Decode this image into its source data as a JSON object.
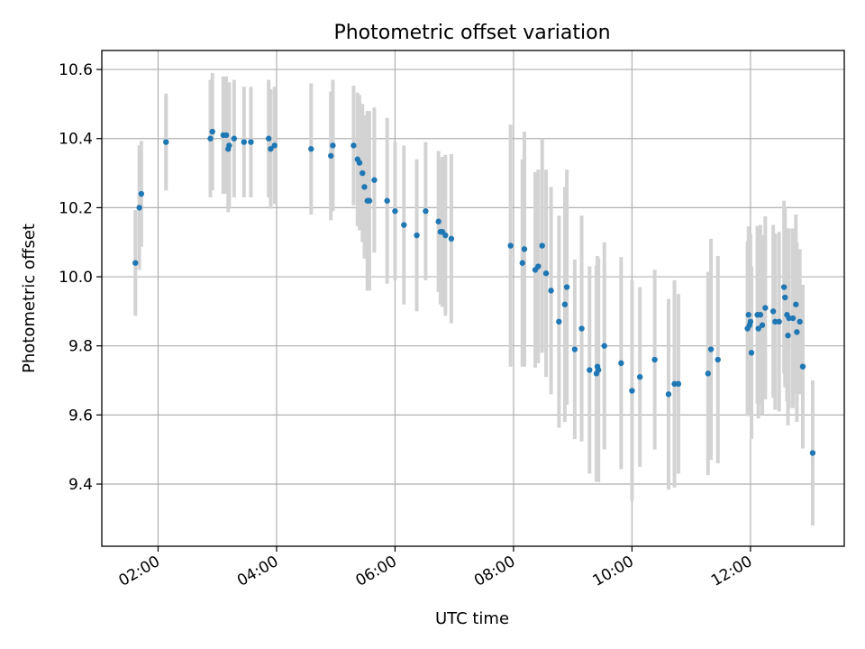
{
  "chart_data": {
    "type": "scatter",
    "title": "Photometric offset variation",
    "xlabel": "UTC time",
    "ylabel": "Photometric offset",
    "xlim": [
      "01:03",
      "13:35"
    ],
    "ylim": [
      9.22,
      10.655
    ],
    "grid": true,
    "x_ticks": [
      "02:00",
      "04:00",
      "06:00",
      "08:00",
      "10:00",
      "12:00"
    ],
    "y_ticks": [
      9.4,
      9.6,
      9.8,
      10.0,
      10.2,
      10.4,
      10.6
    ],
    "y_tick_labels": [
      "9.4",
      "9.6",
      "9.8",
      "10.0",
      "10.2",
      "10.4",
      "10.6"
    ],
    "series": [
      {
        "marker_color": "#1f77b4",
        "errorbar_color": "#d3d3d3",
        "points": [
          {
            "x": "01:37",
            "y": 10.04,
            "err": 0.153
          },
          {
            "x": "01:41",
            "y": 10.2,
            "err": 0.18
          },
          {
            "x": "01:43",
            "y": 10.24,
            "err": 0.153
          },
          {
            "x": "02:08",
            "y": 10.39,
            "err": 0.14
          },
          {
            "x": "02:53",
            "y": 10.4,
            "err": 0.17
          },
          {
            "x": "02:55",
            "y": 10.42,
            "err": 0.17
          },
          {
            "x": "03:06",
            "y": 10.41,
            "err": 0.17
          },
          {
            "x": "03:09",
            "y": 10.41,
            "err": 0.17
          },
          {
            "x": "03:11",
            "y": 10.37,
            "err": 0.183
          },
          {
            "x": "03:12",
            "y": 10.38,
            "err": 0.183
          },
          {
            "x": "03:17",
            "y": 10.4,
            "err": 0.17
          },
          {
            "x": "03:27",
            "y": 10.39,
            "err": 0.16
          },
          {
            "x": "03:34",
            "y": 10.39,
            "err": 0.16
          },
          {
            "x": "03:52",
            "y": 10.4,
            "err": 0.17
          },
          {
            "x": "03:54",
            "y": 10.37,
            "err": 0.173
          },
          {
            "x": "03:58",
            "y": 10.38,
            "err": 0.17
          },
          {
            "x": "04:35",
            "y": 10.37,
            "err": 0.19
          },
          {
            "x": "04:55",
            "y": 10.35,
            "err": 0.186
          },
          {
            "x": "04:57",
            "y": 10.38,
            "err": 0.19
          },
          {
            "x": "05:18",
            "y": 10.38,
            "err": 0.173
          },
          {
            "x": "05:22",
            "y": 10.34,
            "err": 0.193
          },
          {
            "x": "05:24",
            "y": 10.33,
            "err": 0.196
          },
          {
            "x": "05:27",
            "y": 10.3,
            "err": 0.2
          },
          {
            "x": "05:29",
            "y": 10.26,
            "err": 0.207
          },
          {
            "x": "05:32",
            "y": 10.22,
            "err": 0.26
          },
          {
            "x": "05:34",
            "y": 10.22,
            "err": 0.26
          },
          {
            "x": "05:39",
            "y": 10.28,
            "err": 0.21
          },
          {
            "x": "05:52",
            "y": 10.22,
            "err": 0.24
          },
          {
            "x": "06:00",
            "y": 10.19,
            "err": 0.2
          },
          {
            "x": "06:09",
            "y": 10.15,
            "err": 0.23
          },
          {
            "x": "06:22",
            "y": 10.12,
            "err": 0.22
          },
          {
            "x": "06:31",
            "y": 10.19,
            "err": 0.2
          },
          {
            "x": "06:44",
            "y": 10.16,
            "err": 0.204
          },
          {
            "x": "06:46",
            "y": 10.13,
            "err": 0.21
          },
          {
            "x": "06:48",
            "y": 10.13,
            "err": 0.217
          },
          {
            "x": "06:51",
            "y": 10.12,
            "err": 0.233
          },
          {
            "x": "06:57",
            "y": 10.11,
            "err": 0.245
          },
          {
            "x": "07:57",
            "y": 10.09,
            "err": 0.35
          },
          {
            "x": "08:09",
            "y": 10.04,
            "err": 0.3
          },
          {
            "x": "08:11",
            "y": 10.08,
            "err": 0.34
          },
          {
            "x": "08:22",
            "y": 10.02,
            "err": 0.283
          },
          {
            "x": "08:25",
            "y": 10.03,
            "err": 0.28
          },
          {
            "x": "08:29",
            "y": 10.09,
            "err": 0.31
          },
          {
            "x": "08:33",
            "y": 10.01,
            "err": 0.3
          },
          {
            "x": "08:38",
            "y": 9.96,
            "err": 0.3
          },
          {
            "x": "08:46",
            "y": 9.87,
            "err": 0.307
          },
          {
            "x": "08:52",
            "y": 9.92,
            "err": 0.34
          },
          {
            "x": "08:54",
            "y": 9.97,
            "err": 0.34
          },
          {
            "x": "09:02",
            "y": 9.79,
            "err": 0.26
          },
          {
            "x": "09:09",
            "y": 9.85,
            "err": 0.327
          },
          {
            "x": "09:17",
            "y": 9.73,
            "err": 0.3
          },
          {
            "x": "09:24",
            "y": 9.72,
            "err": 0.313
          },
          {
            "x": "09:25",
            "y": 9.74,
            "err": 0.32
          },
          {
            "x": "09:26",
            "y": 9.73,
            "err": 0.324
          },
          {
            "x": "09:32",
            "y": 9.8,
            "err": 0.3
          },
          {
            "x": "09:49",
            "y": 9.75,
            "err": 0.307
          },
          {
            "x": "10:00",
            "y": 9.67,
            "err": 0.32
          },
          {
            "x": "10:08",
            "y": 9.71,
            "err": 0.26
          },
          {
            "x": "10:23",
            "y": 9.76,
            "err": 0.26
          },
          {
            "x": "10:37",
            "y": 9.66,
            "err": 0.276
          },
          {
            "x": "10:43",
            "y": 9.69,
            "err": 0.3
          },
          {
            "x": "10:47",
            "y": 9.69,
            "err": 0.26
          },
          {
            "x": "11:17",
            "y": 9.72,
            "err": 0.294
          },
          {
            "x": "11:20",
            "y": 9.79,
            "err": 0.32
          },
          {
            "x": "11:27",
            "y": 9.76,
            "err": 0.3
          },
          {
            "x": "11:57",
            "y": 9.85,
            "err": 0.253
          },
          {
            "x": "11:58",
            "y": 9.89,
            "err": 0.256
          },
          {
            "x": "11:59",
            "y": 9.86,
            "err": 0.26
          },
          {
            "x": "12:00",
            "y": 9.87,
            "err": 0.255
          },
          {
            "x": "12:01",
            "y": 9.78,
            "err": 0.25
          },
          {
            "x": "12:07",
            "y": 9.89,
            "err": 0.257
          },
          {
            "x": "12:08",
            "y": 9.85,
            "err": 0.26
          },
          {
            "x": "12:10",
            "y": 9.89,
            "err": 0.26
          },
          {
            "x": "12:12",
            "y": 9.86,
            "err": 0.26
          },
          {
            "x": "12:15",
            "y": 9.91,
            "err": 0.265
          },
          {
            "x": "12:23",
            "y": 9.9,
            "err": 0.25
          },
          {
            "x": "12:25",
            "y": 9.87,
            "err": 0.255
          },
          {
            "x": "12:29",
            "y": 9.87,
            "err": 0.26
          },
          {
            "x": "12:34",
            "y": 9.97,
            "err": 0.25
          },
          {
            "x": "12:35",
            "y": 9.94,
            "err": 0.26
          },
          {
            "x": "12:37",
            "y": 9.89,
            "err": 0.25
          },
          {
            "x": "12:38",
            "y": 9.83,
            "err": 0.26
          },
          {
            "x": "12:39",
            "y": 9.88,
            "err": 0.26
          },
          {
            "x": "12:43",
            "y": 9.88,
            "err": 0.26
          },
          {
            "x": "12:46",
            "y": 9.92,
            "err": 0.26
          },
          {
            "x": "12:47",
            "y": 9.84,
            "err": 0.26
          },
          {
            "x": "12:50",
            "y": 9.87,
            "err": 0.21
          },
          {
            "x": "12:53",
            "y": 9.74,
            "err": 0.237
          },
          {
            "x": "13:03",
            "y": 9.49,
            "err": 0.21
          }
        ]
      }
    ]
  }
}
